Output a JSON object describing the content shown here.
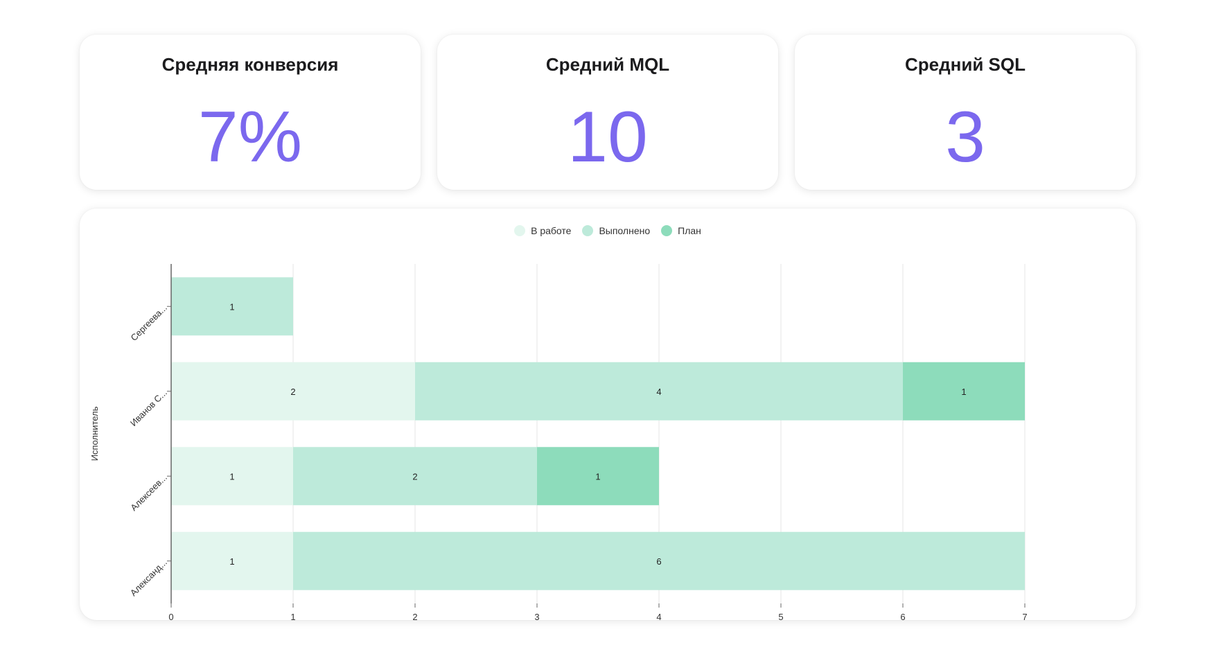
{
  "kpis": [
    {
      "title": "Средняя конверсия",
      "value": "7%"
    },
    {
      "title": "Средний MQL",
      "value": "10"
    },
    {
      "title": "Средний SQL",
      "value": "3"
    }
  ],
  "colors": {
    "accent": "#7b68ee",
    "in_progress": "#e3f6ee",
    "done": "#bdeada",
    "plan": "#8ddcbb"
  },
  "chart_data": {
    "type": "bar",
    "orientation": "horizontal",
    "stacked": true,
    "ylabel": "Исполнитель",
    "xlabel": "",
    "xlim": [
      0,
      7
    ],
    "xticks": [
      "0",
      "1",
      "2",
      "3",
      "4",
      "5",
      "6",
      "7"
    ],
    "grid": true,
    "legend_position": "top-center",
    "categories": [
      "Сергеева...",
      "Иванов С...",
      "Алексеев...",
      "Александ..."
    ],
    "series": [
      {
        "name": "В работе",
        "color": "#e3f6ee",
        "values": [
          0,
          2,
          1,
          1
        ]
      },
      {
        "name": "Выполнено",
        "color": "#bdeada",
        "values": [
          1,
          4,
          2,
          6
        ]
      },
      {
        "name": "План",
        "color": "#8ddcbb",
        "values": [
          0,
          1,
          1,
          0
        ]
      }
    ]
  }
}
